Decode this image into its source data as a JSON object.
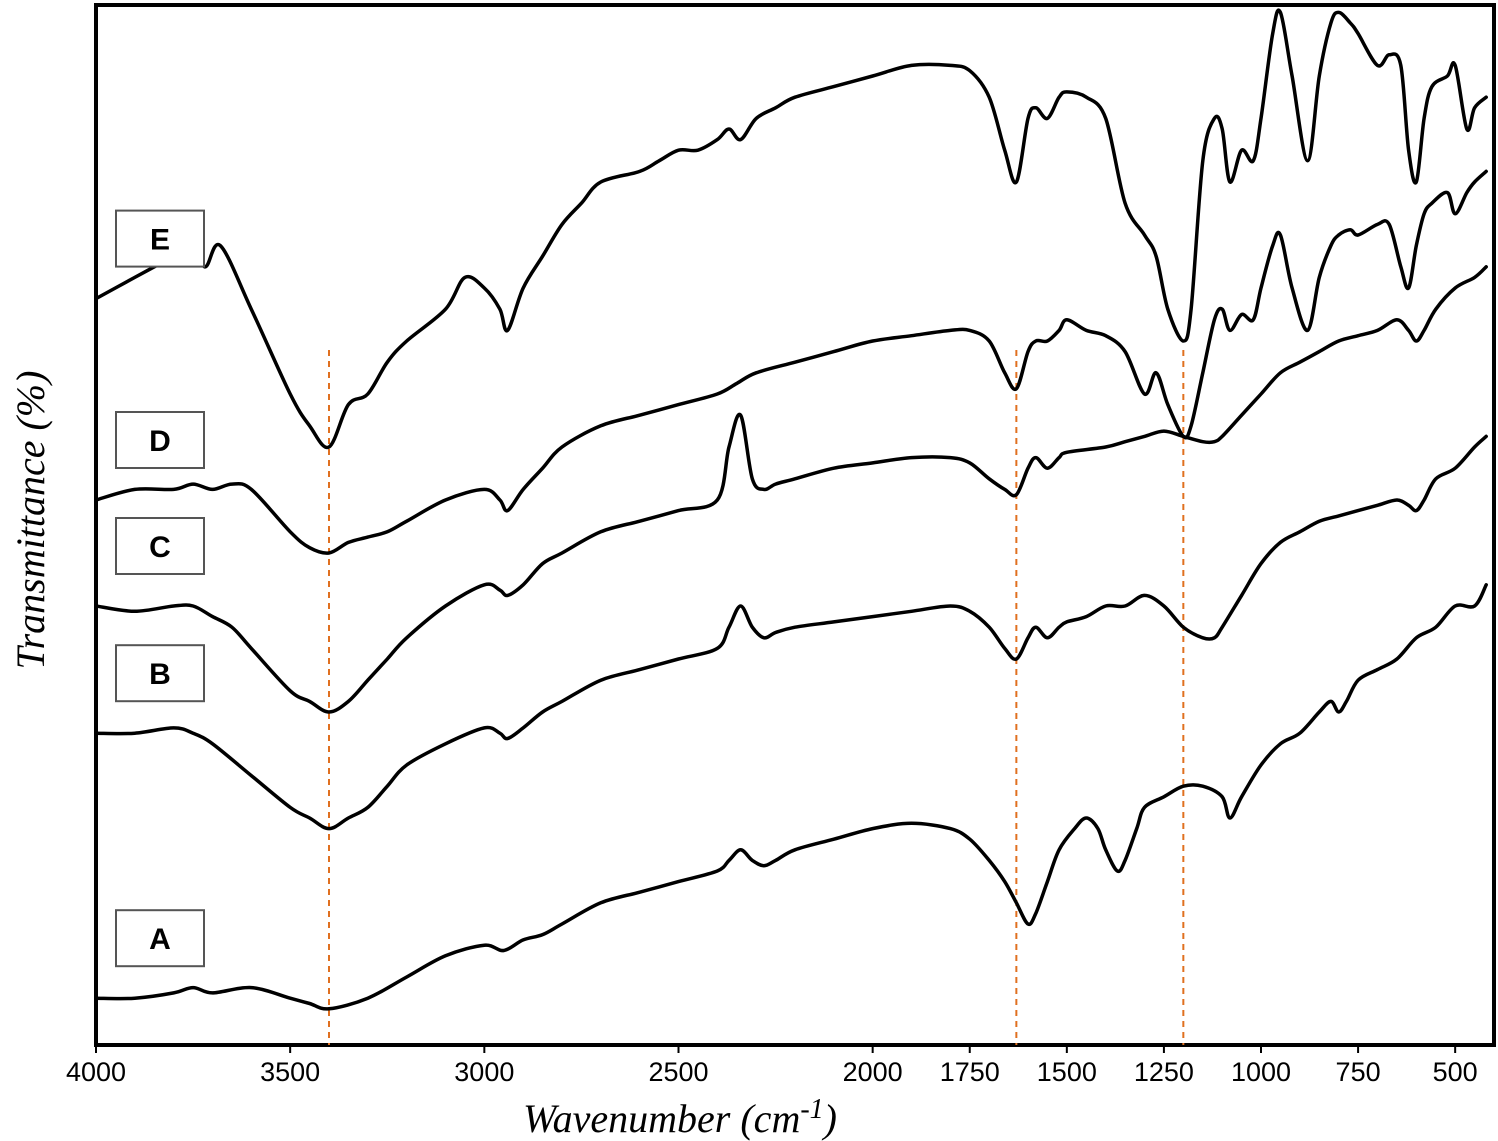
{
  "chart_data": {
    "type": "line",
    "title": "",
    "xlabel": "Wavenumber (cm",
    "xlabel_sup": "-1",
    "xlabel_close": ")",
    "ylabel": "Transmittance (%)",
    "xlim": [
      4000,
      400
    ],
    "x_reversed": true,
    "x_ticks": [
      "4000",
      "3500",
      "3000",
      "2500",
      "2000",
      "1750",
      "1500",
      "1250",
      "1000",
      "750",
      "500"
    ],
    "y_ticks": [],
    "grid": false,
    "legend": "inline labels at left",
    "reference_lines": [
      3400,
      1630,
      1200
    ],
    "reference_line_color": "#e07020",
    "line_color": "#000000",
    "series": [
      {
        "name": "E",
        "x": [
          4000,
          3900,
          3850,
          3800,
          3760,
          3720,
          3680,
          3600,
          3500,
          3450,
          3400,
          3350,
          3300,
          3250,
          3200,
          3100,
          3050,
          3000,
          2960,
          2940,
          2900,
          2850,
          2800,
          2750,
          2700,
          2600,
          2550,
          2500,
          2450,
          2400,
          2370,
          2340,
          2300,
          2250,
          2200,
          2100,
          2000,
          1900,
          1800,
          1750,
          1700,
          1660,
          1630,
          1600,
          1580,
          1550,
          1520,
          1500,
          1450,
          1400,
          1350,
          1300,
          1270,
          1240,
          1200,
          1180,
          1150,
          1120,
          1100,
          1080,
          1050,
          1020,
          1000,
          970,
          950,
          920,
          880,
          850,
          820,
          800,
          770,
          750,
          700,
          670,
          640,
          620,
          600,
          580,
          560,
          520,
          500,
          470,
          450,
          420
        ],
        "y": [
          69,
          71,
          72,
          73,
          75,
          72,
          74,
          68,
          60,
          57,
          55,
          59,
          60,
          63,
          65,
          68,
          71,
          70,
          68,
          66,
          70,
          73,
          76,
          78,
          80,
          81,
          82,
          83,
          83,
          84,
          85,
          84,
          86,
          87,
          88,
          89,
          90,
          91,
          91,
          90.5,
          88,
          83,
          80,
          86,
          87,
          86,
          88,
          88.5,
          88,
          86,
          78,
          75,
          73,
          68,
          65,
          68,
          82,
          86,
          85,
          80,
          83,
          82,
          86,
          94,
          96,
          90,
          82,
          90,
          95,
          96,
          95,
          94,
          91,
          92,
          91,
          83,
          80,
          86,
          89,
          90,
          91,
          85,
          87,
          88
        ]
      },
      {
        "name": "D",
        "x": [
          4000,
          3900,
          3800,
          3750,
          3700,
          3650,
          3600,
          3500,
          3450,
          3400,
          3350,
          3300,
          3250,
          3200,
          3100,
          3000,
          2960,
          2940,
          2900,
          2850,
          2800,
          2700,
          2600,
          2500,
          2400,
          2350,
          2300,
          2200,
          2100,
          2000,
          1900,
          1800,
          1750,
          1700,
          1660,
          1630,
          1600,
          1580,
          1550,
          1520,
          1500,
          1450,
          1400,
          1350,
          1300,
          1270,
          1240,
          1200,
          1180,
          1150,
          1120,
          1100,
          1080,
          1050,
          1020,
          1000,
          970,
          950,
          920,
          880,
          850,
          820,
          800,
          770,
          750,
          700,
          670,
          640,
          620,
          600,
          580,
          560,
          520,
          500,
          470,
          450,
          420
        ],
        "y": [
          50,
          51,
          51,
          51.5,
          51,
          51.5,
          51,
          47,
          45.5,
          45,
          46,
          46.5,
          47,
          48,
          50,
          51,
          50,
          49,
          51,
          53,
          55,
          57,
          58,
          59,
          60,
          61,
          62,
          63,
          64,
          65,
          65.5,
          66,
          66,
          65,
          62,
          60.5,
          64,
          65,
          65,
          66,
          67,
          66,
          65.5,
          64,
          60,
          62,
          59,
          56,
          57,
          62,
          67,
          68,
          66,
          67.5,
          67,
          70,
          74,
          75,
          70,
          66,
          71,
          74,
          75,
          75.5,
          75,
          76,
          76,
          72,
          70,
          74,
          77,
          78,
          79,
          77,
          79,
          80,
          81
        ]
      },
      {
        "name": "C",
        "x": [
          4000,
          3900,
          3800,
          3750,
          3700,
          3650,
          3600,
          3500,
          3450,
          3400,
          3350,
          3300,
          3250,
          3200,
          3100,
          3000,
          2960,
          2940,
          2900,
          2850,
          2800,
          2700,
          2600,
          2500,
          2400,
          2370,
          2340,
          2310,
          2280,
          2250,
          2200,
          2100,
          2000,
          1900,
          1800,
          1750,
          1700,
          1660,
          1630,
          1600,
          1580,
          1550,
          1520,
          1500,
          1400,
          1350,
          1300,
          1250,
          1200,
          1150,
          1120,
          1100,
          1050,
          1000,
          950,
          900,
          850,
          800,
          750,
          700,
          650,
          620,
          600,
          580,
          550,
          500,
          450,
          420
        ],
        "y": [
          40,
          39.5,
          40,
          40,
          39,
          38,
          36,
          32,
          31,
          30,
          31,
          33,
          35,
          37,
          40,
          42,
          41.5,
          41,
          42,
          44,
          45,
          47,
          48,
          49,
          50,
          55,
          58,
          52,
          51,
          51.5,
          52,
          53,
          53.5,
          54,
          54,
          53.5,
          52,
          51,
          50.5,
          53,
          54,
          53,
          54,
          54.5,
          55,
          55.5,
          56,
          56.5,
          56,
          55.5,
          55.5,
          56,
          58,
          60,
          62,
          63,
          64,
          65,
          65.5,
          66,
          67,
          66,
          65,
          66,
          68,
          70,
          71,
          72
        ]
      },
      {
        "name": "B",
        "x": [
          4000,
          3900,
          3800,
          3750,
          3700,
          3600,
          3500,
          3450,
          3400,
          3350,
          3300,
          3250,
          3200,
          3100,
          3000,
          2960,
          2940,
          2900,
          2850,
          2800,
          2700,
          2600,
          2500,
          2400,
          2370,
          2340,
          2310,
          2280,
          2250,
          2200,
          2100,
          2000,
          1900,
          1800,
          1750,
          1700,
          1660,
          1630,
          1600,
          1580,
          1550,
          1520,
          1500,
          1450,
          1400,
          1350,
          1300,
          1250,
          1200,
          1150,
          1120,
          1100,
          1050,
          1000,
          950,
          900,
          850,
          800,
          750,
          700,
          650,
          620,
          600,
          580,
          550,
          500,
          450,
          420
        ],
        "y": [
          28,
          28,
          28.5,
          28,
          27,
          24,
          21,
          20,
          19,
          20,
          21,
          23,
          25,
          27,
          28.5,
          28,
          27.5,
          28.5,
          30,
          31,
          33,
          34,
          35,
          36,
          38,
          40,
          38,
          37,
          37.5,
          38,
          38.5,
          39,
          39.5,
          40,
          39.5,
          38,
          36,
          35,
          37,
          38,
          37,
          38,
          38.5,
          39,
          40,
          40,
          41,
          40,
          38,
          37,
          37,
          38,
          41,
          44,
          46,
          47,
          48,
          48.5,
          49,
          49.5,
          50,
          49.5,
          49,
          50,
          52,
          53,
          55,
          56
        ]
      },
      {
        "name": "A",
        "x": [
          4000,
          3900,
          3800,
          3750,
          3700,
          3600,
          3500,
          3450,
          3400,
          3300,
          3200,
          3100,
          3000,
          2950,
          2900,
          2850,
          2800,
          2700,
          2600,
          2500,
          2400,
          2370,
          2340,
          2310,
          2280,
          2250,
          2200,
          2100,
          2000,
          1900,
          1800,
          1750,
          1700,
          1660,
          1630,
          1600,
          1580,
          1550,
          1520,
          1480,
          1450,
          1420,
          1400,
          1370,
          1350,
          1320,
          1300,
          1250,
          1200,
          1150,
          1100,
          1080,
          1050,
          1000,
          950,
          900,
          850,
          820,
          800,
          780,
          750,
          700,
          650,
          600,
          550,
          500,
          450,
          420
        ],
        "y": [
          3,
          3,
          3.5,
          4,
          3.5,
          4,
          3,
          2.5,
          2,
          3,
          5,
          7,
          8,
          7.5,
          8.5,
          9,
          10,
          12,
          13,
          14,
          15,
          16,
          17,
          16,
          15.5,
          16,
          17,
          18,
          19,
          19.5,
          19,
          18,
          16,
          14,
          12,
          10,
          11,
          14,
          17,
          19,
          20,
          19,
          17,
          15,
          16,
          19,
          21,
          22,
          23,
          23,
          22,
          20,
          22,
          25,
          27,
          28,
          30,
          31,
          30,
          31,
          33,
          34,
          35,
          37,
          38,
          40,
          40,
          42
        ]
      }
    ]
  }
}
